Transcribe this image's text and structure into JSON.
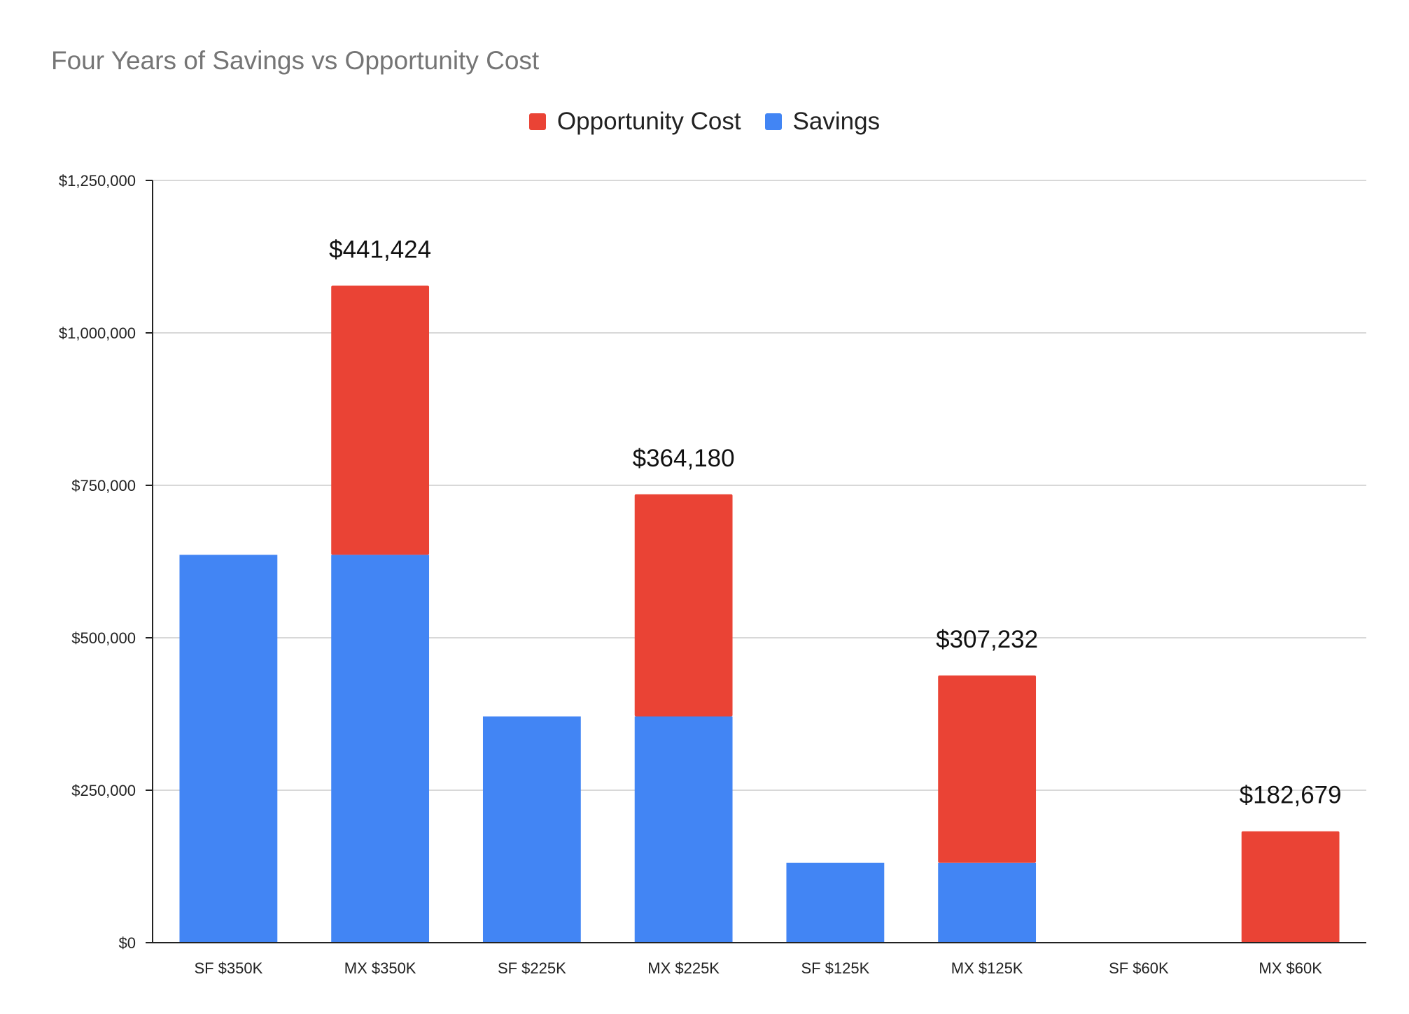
{
  "chart_data": {
    "type": "bar",
    "stacked": true,
    "title": "Four Years of Savings vs Opportunity Cost",
    "xlabel": "",
    "ylabel": "",
    "ylim": [
      0,
      1250000
    ],
    "y_ticks": [
      0,
      250000,
      500000,
      750000,
      1000000,
      1250000
    ],
    "y_tick_labels": [
      "$0",
      "$250,000",
      "$500,000",
      "$750,000",
      "$1,000,000",
      "$1,250,000"
    ],
    "grid": true,
    "legend_position": "top-center",
    "categories": [
      "SF $350K",
      "MX $350K",
      "SF $225K",
      "MX $225K",
      "SF $125K",
      "MX $125K",
      "SF $60K",
      "MX $60K"
    ],
    "series": [
      {
        "name": "Savings",
        "color": "#4285f4",
        "values": [
          636000,
          636000,
          371000,
          371000,
          131000,
          131000,
          0,
          0
        ]
      },
      {
        "name": "Opportunity Cost",
        "color": "#ea4335",
        "values": [
          0,
          441424,
          0,
          364180,
          0,
          307232,
          0,
          182679
        ]
      }
    ],
    "legend_order": [
      "Opportunity Cost",
      "Savings"
    ],
    "annotations": [
      {
        "category": "MX $350K",
        "text": "$441,424"
      },
      {
        "category": "MX $225K",
        "text": "$364,180"
      },
      {
        "category": "MX $125K",
        "text": "$307,232"
      },
      {
        "category": "MX $60K",
        "text": "$182,679"
      }
    ]
  }
}
